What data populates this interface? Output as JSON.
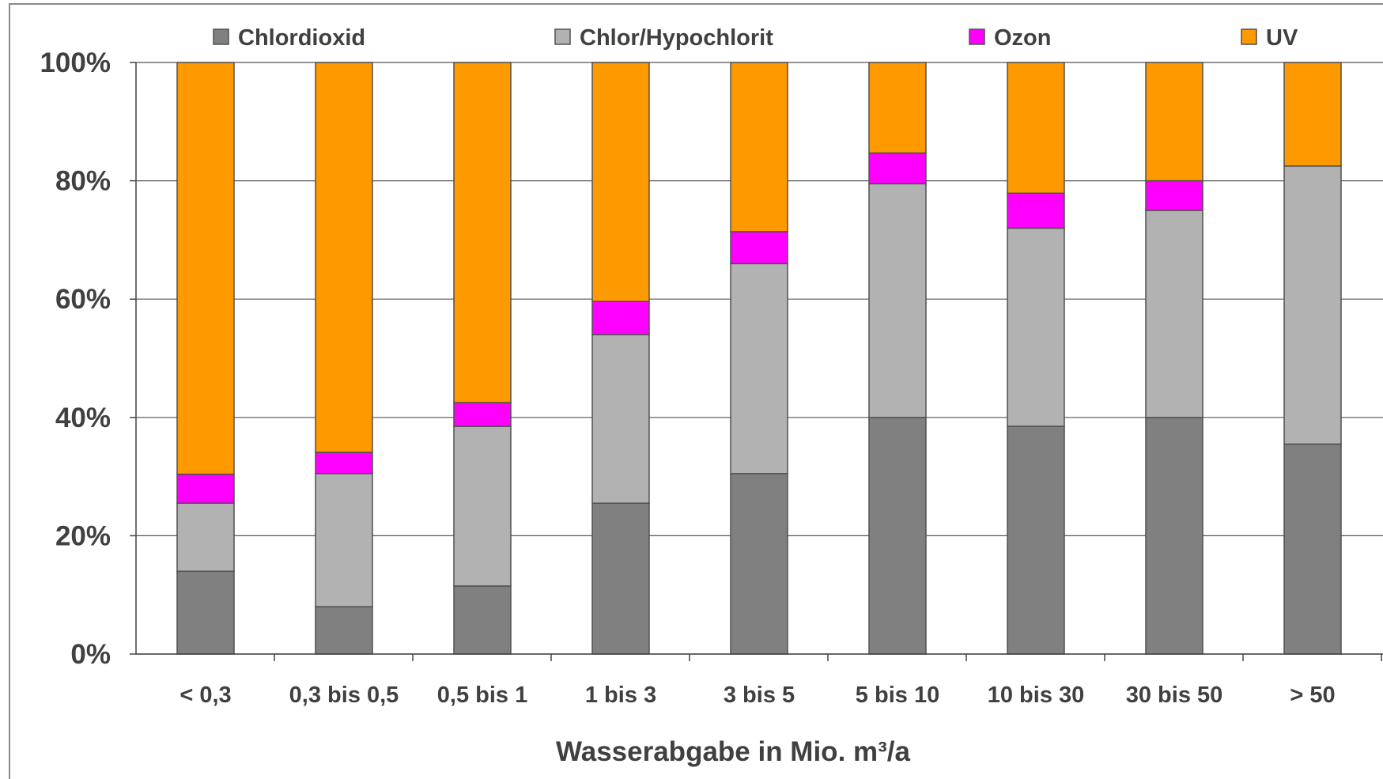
{
  "chart_data": {
    "type": "bar",
    "stacked": true,
    "percent": true,
    "title": "",
    "xlabel": "Wasserabgabe in Mio. m³/a",
    "ylabel": "",
    "ylim": [
      0,
      100
    ],
    "yticks": [
      "0%",
      "20%",
      "40%",
      "60%",
      "80%",
      "100%"
    ],
    "grid": true,
    "legend_position": "top",
    "categories": [
      "< 0,3",
      "0,3 bis 0,5",
      "0,5 bis 1",
      "1 bis 3",
      "3 bis 5",
      "5 bis 10",
      "10 bis 30",
      "30 bis 50",
      "> 50"
    ],
    "series": [
      {
        "name": "Chlordioxid",
        "color": "#808080",
        "values": [
          14,
          8,
          11.5,
          25.5,
          30.5,
          40,
          38.5,
          40,
          35.5
        ]
      },
      {
        "name": "Chlor/Hypochlorit",
        "color": "#b2b2b2",
        "values": [
          11.5,
          22.5,
          27,
          28.5,
          35.5,
          39.5,
          33.5,
          35,
          47
        ]
      },
      {
        "name": "Ozon",
        "color": "#ff00ff",
        "values": [
          4.9,
          3.6,
          4,
          5.6,
          5.4,
          5.2,
          5.9,
          5,
          0
        ]
      },
      {
        "name": "UV",
        "color": "#ff9900",
        "values": [
          69.6,
          65.9,
          57.5,
          40.4,
          28.6,
          15.3,
          22.1,
          20,
          17.5
        ]
      }
    ]
  }
}
